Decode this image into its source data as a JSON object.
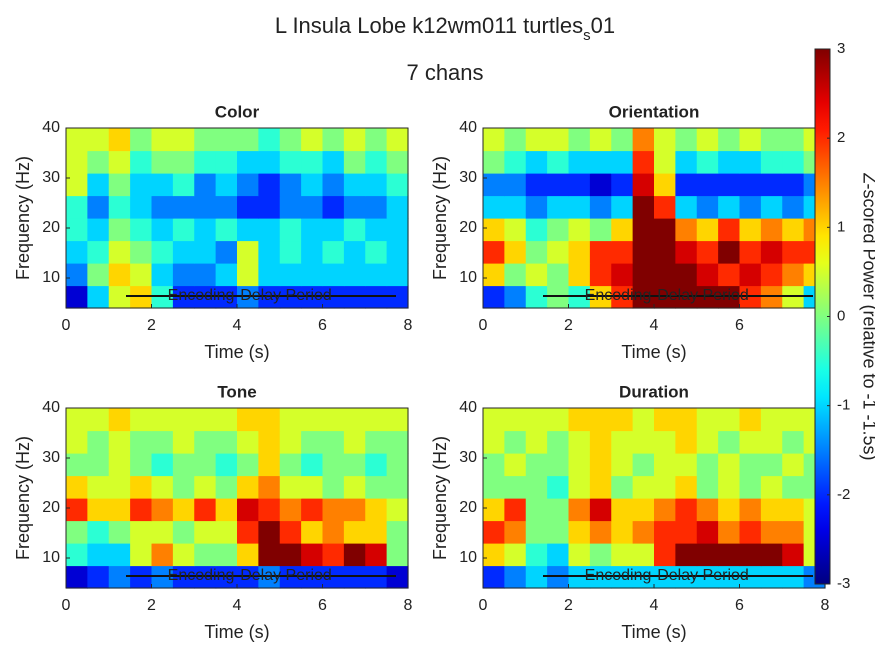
{
  "title": "L Insula Lobe k12wm011 turtles",
  "title_subscript": "s",
  "title_suffix": "01",
  "subtitle": "7 chans",
  "colorbar": {
    "label": "Z-scored Power (relative to -1 -1.5s)",
    "colormap": "jet",
    "clim": [
      -3,
      3
    ],
    "ticks": [
      -3,
      -2,
      -1,
      0,
      1,
      2,
      3
    ]
  },
  "chart_data": [
    {
      "type": "heatmap",
      "title": "Color",
      "xlabel": "Time (s)",
      "ylabel": "Frequency (Hz)",
      "xlim": [
        0,
        8
      ],
      "xticks": [
        0,
        2,
        4,
        6,
        8
      ],
      "ylim": [
        4,
        40
      ],
      "yticks": [
        10,
        20,
        30,
        40
      ],
      "x": [
        0,
        0.5,
        1,
        1.5,
        2,
        2.5,
        3,
        3.5,
        4,
        4.5,
        5,
        5.5,
        6,
        6.5,
        7,
        7.5,
        8
      ],
      "y": [
        4,
        8.5,
        13,
        17.5,
        22,
        26.5,
        31,
        35.5,
        40
      ],
      "annotations": [
        "Encoding",
        "Delay Period"
      ],
      "values": [
        [
          -2.5,
          -1,
          0.5,
          1,
          -0.5,
          -2,
          -2,
          -2,
          -1.5,
          -2,
          -2,
          -2,
          -2,
          -2,
          -2,
          -2
        ],
        [
          -1.5,
          0,
          1,
          0.5,
          -1,
          -1.5,
          -1.5,
          -1,
          0.5,
          -1,
          -1,
          -1,
          -1,
          -1,
          -1,
          -1
        ],
        [
          -1,
          -0.5,
          0.5,
          0,
          -0.5,
          -1,
          -1,
          -1.5,
          0.5,
          -1,
          -0.5,
          -1,
          -0.5,
          -1,
          -0.5,
          -1
        ],
        [
          -0.5,
          -1,
          0,
          -0.5,
          -1,
          -0.5,
          -1,
          -0.5,
          -1,
          -1,
          -0.5,
          -1,
          -1,
          -0.5,
          -1,
          -1
        ],
        [
          -0.5,
          -1.5,
          -0.5,
          -1,
          -1.5,
          -1.5,
          -1.5,
          -1.5,
          -2,
          -2,
          -1.5,
          -1.5,
          -2,
          -1.5,
          -1.5,
          -1
        ],
        [
          0.5,
          -1,
          0,
          -1,
          -1,
          -0.5,
          -1.5,
          -1,
          -1.5,
          -2,
          -1.5,
          -1,
          -1.5,
          -1,
          -1,
          -0.5
        ],
        [
          0.5,
          0,
          0.5,
          -0.5,
          0,
          0,
          -0.5,
          -0.5,
          -1,
          -1,
          -0.5,
          -0.5,
          -1,
          0,
          -0.5,
          0
        ],
        [
          0.5,
          0.5,
          1,
          0,
          0.5,
          0.5,
          0,
          0,
          0,
          -0.5,
          0,
          0.5,
          0,
          0.5,
          0,
          0.5
        ]
      ]
    },
    {
      "type": "heatmap",
      "title": "Orientation",
      "xlabel": "Time (s)",
      "ylabel": "Frequency (Hz)",
      "xlim": [
        0,
        8
      ],
      "xticks": [
        0,
        2,
        4,
        6,
        8
      ],
      "ylim": [
        4,
        40
      ],
      "yticks": [
        10,
        20,
        30,
        40
      ],
      "x": [
        0,
        0.5,
        1,
        1.5,
        2,
        2.5,
        3,
        3.5,
        4,
        4.5,
        5,
        5.5,
        6,
        6.5,
        7,
        7.5,
        8
      ],
      "y": [
        4,
        8.5,
        13,
        17.5,
        22,
        26.5,
        31,
        35.5,
        40
      ],
      "annotations": [
        "Encoding",
        "Delay Period"
      ],
      "values": [
        [
          -2,
          -1.5,
          -0.5,
          0,
          -0.5,
          1,
          2,
          3,
          3,
          3,
          3,
          3,
          2,
          1.5,
          0.5,
          -1
        ],
        [
          1,
          0,
          0.5,
          0,
          1,
          2,
          2.5,
          3,
          3,
          3,
          2.5,
          2,
          2.5,
          2,
          1.5,
          1
        ],
        [
          2,
          1,
          0,
          0.5,
          1,
          2,
          2,
          3,
          3,
          2.5,
          2,
          3,
          2,
          2.5,
          2,
          2
        ],
        [
          1,
          0.5,
          -0.5,
          0,
          0.5,
          0,
          1,
          3,
          3,
          1.5,
          1,
          2,
          1,
          1.5,
          1,
          1.5
        ],
        [
          -1,
          -1,
          -1.5,
          -1,
          -1,
          -1.5,
          -1,
          3,
          2,
          -1,
          -1.5,
          -1,
          -1.5,
          -1,
          -1.5,
          -1
        ],
        [
          -1.5,
          -1.5,
          -2,
          -2,
          -2,
          -2.5,
          -2,
          2.5,
          1,
          -2,
          -2,
          -2,
          -2,
          -2,
          -2,
          -1.5
        ],
        [
          0,
          -0.5,
          -1,
          -0.5,
          -1,
          -1,
          -1,
          2,
          0.5,
          -1,
          -0.5,
          -1,
          -1,
          -0.5,
          -0.5,
          0
        ],
        [
          0.5,
          0,
          0.5,
          0.5,
          0,
          0.5,
          0,
          1.5,
          0.5,
          0,
          0.5,
          0,
          0.5,
          0,
          0,
          0.5
        ]
      ]
    },
    {
      "type": "heatmap",
      "title": "Tone",
      "xlabel": "Time (s)",
      "ylabel": "Frequency (Hz)",
      "xlim": [
        0,
        8
      ],
      "xticks": [
        0,
        2,
        4,
        6,
        8
      ],
      "ylim": [
        4,
        40
      ],
      "yticks": [
        10,
        20,
        30,
        40
      ],
      "x": [
        0,
        0.5,
        1,
        1.5,
        2,
        2.5,
        3,
        3.5,
        4,
        4.5,
        5,
        5.5,
        6,
        6.5,
        7,
        7.5,
        8
      ],
      "y": [
        4,
        8.5,
        13,
        17.5,
        22,
        26.5,
        31,
        35.5,
        40
      ],
      "annotations": [
        "Encoding",
        "Delay Period"
      ],
      "values": [
        [
          -2.5,
          -2,
          -1.5,
          -2,
          -1.5,
          -2,
          -2,
          -2,
          -2,
          -1.5,
          -2,
          -2,
          -2,
          -2,
          -2,
          -2.5
        ],
        [
          -0.5,
          -1,
          -1,
          0.5,
          1.5,
          0.5,
          0,
          0,
          1,
          3,
          3,
          2.5,
          2,
          3,
          2.5,
          0
        ],
        [
          0,
          -0.5,
          0,
          0.5,
          0.5,
          0,
          0.5,
          0.5,
          2,
          3,
          2,
          1,
          1.5,
          1,
          1,
          0
        ],
        [
          2,
          1,
          1,
          2,
          1.5,
          1,
          2,
          1,
          2.5,
          2,
          1.5,
          2,
          1.5,
          1.5,
          1,
          0.5
        ],
        [
          1,
          0.5,
          0.5,
          1,
          0.5,
          0,
          0.5,
          0,
          1,
          1.5,
          0.5,
          0.5,
          0,
          0.5,
          0,
          0
        ],
        [
          0,
          0,
          0.5,
          0,
          -0.5,
          0,
          0,
          -0.5,
          0,
          1,
          0,
          -0.5,
          0,
          0,
          -0.5,
          0
        ],
        [
          0.5,
          0,
          0.5,
          0,
          0,
          0.5,
          0,
          0,
          0.5,
          1,
          0.5,
          0,
          0,
          0.5,
          0,
          0
        ],
        [
          0.5,
          0.5,
          1,
          0.5,
          0.5,
          0.5,
          0.5,
          0.5,
          1,
          1,
          0.5,
          0.5,
          0.5,
          0.5,
          0.5,
          0.5
        ]
      ]
    },
    {
      "type": "heatmap",
      "title": "Duration",
      "xlabel": "Time (s)",
      "ylabel": "Frequency (Hz)",
      "xlim": [
        0,
        8
      ],
      "xticks": [
        0,
        2,
        4,
        6,
        8
      ],
      "ylim": [
        4,
        40
      ],
      "yticks": [
        10,
        20,
        30,
        40
      ],
      "x": [
        0,
        0.5,
        1,
        1.5,
        2,
        2.5,
        3,
        3.5,
        4,
        4.5,
        5,
        5.5,
        6,
        6.5,
        7,
        7.5,
        8
      ],
      "y": [
        4,
        8.5,
        13,
        17.5,
        22,
        26.5,
        31,
        35.5,
        40
      ],
      "annotations": [
        "Encoding",
        "Delay Period"
      ],
      "values": [
        [
          -2,
          -1.5,
          -1,
          -1.5,
          -1,
          -1,
          -1,
          -1,
          -1,
          -1,
          -1,
          -1,
          -1,
          -1,
          -1,
          -1.5
        ],
        [
          1,
          0.5,
          -0.5,
          -1,
          0.5,
          0,
          0.5,
          0.5,
          2,
          3,
          3,
          3,
          3,
          3,
          2.5,
          0.5
        ],
        [
          2,
          1.5,
          0,
          0,
          1,
          1.5,
          1,
          1.5,
          2,
          2,
          2.5,
          1.5,
          2,
          1.5,
          1.5,
          0.5
        ],
        [
          1,
          2,
          0,
          0,
          1.5,
          2.5,
          1,
          1,
          1.5,
          2,
          1.5,
          1,
          1.5,
          1,
          1,
          0.5
        ],
        [
          0,
          0,
          0,
          -0.5,
          0.5,
          1,
          0,
          0.5,
          0.5,
          1,
          0,
          0.5,
          0,
          0.5,
          0,
          0
        ],
        [
          0,
          0.5,
          0,
          0,
          0.5,
          1,
          0.5,
          0,
          0.5,
          0.5,
          0,
          0.5,
          0,
          0,
          0.5,
          0
        ],
        [
          0.5,
          0,
          0.5,
          0,
          0.5,
          1,
          0.5,
          0.5,
          0.5,
          1,
          0.5,
          0,
          0.5,
          0.5,
          0,
          0.5
        ],
        [
          0.5,
          0.5,
          0.5,
          0.5,
          1,
          1,
          1,
          0.5,
          1,
          1,
          0.5,
          0.5,
          1,
          0.5,
          0.5,
          0.5
        ]
      ]
    }
  ]
}
